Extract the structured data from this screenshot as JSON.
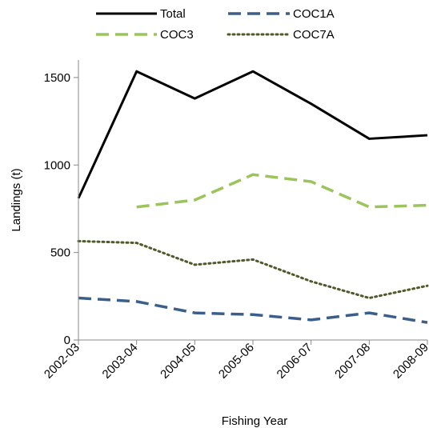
{
  "chart_data": {
    "type": "line",
    "xlabel": "Fishing Year",
    "ylabel": "Landings (t)",
    "categories": [
      "2002-03",
      "2003-04",
      "2004-05",
      "2005-06",
      "2006-07",
      "2007-08",
      "2008-09"
    ],
    "ylim": [
      0,
      1600
    ],
    "yticks": [
      0,
      500,
      1000,
      1500
    ],
    "grid": false,
    "legend_position": "top",
    "series": [
      {
        "name": "Total",
        "color": "#000000",
        "style": "solid",
        "values": [
          810,
          1535,
          1380,
          1535,
          1350,
          1150,
          1170
        ]
      },
      {
        "name": "COC1A",
        "color": "#3b5f8a",
        "style": "dashed",
        "values": [
          240,
          220,
          155,
          145,
          115,
          155,
          100
        ]
      },
      {
        "name": "COC3",
        "color": "#9bc45a",
        "style": "dashed",
        "values": [
          null,
          760,
          800,
          945,
          905,
          760,
          770
        ]
      },
      {
        "name": "COC7A",
        "color": "#4f5a2a",
        "style": "dotted",
        "values": [
          565,
          555,
          430,
          460,
          335,
          240,
          310
        ]
      }
    ]
  }
}
